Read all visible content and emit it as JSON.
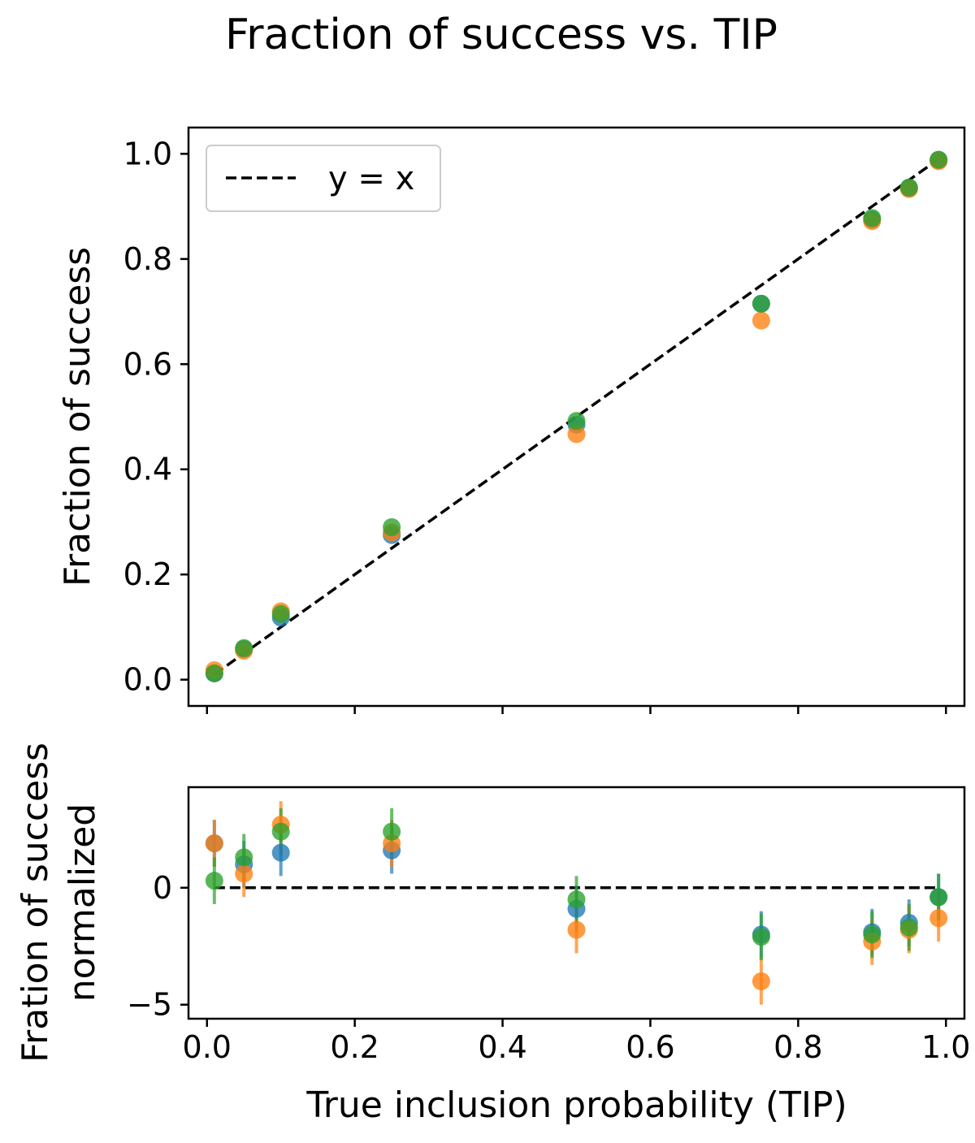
{
  "chart_data": [
    {
      "type": "scatter",
      "title": "Fraction of success vs. TIP",
      "xlabel": "",
      "ylabel": "Fraction of success",
      "xlim": [
        -0.025,
        1.025
      ],
      "ylim": [
        -0.05,
        1.05
      ],
      "xticks": [
        "",
        "",
        "",
        "",
        "",
        ""
      ],
      "yticks": [
        "0.0",
        "0.2",
        "0.4",
        "0.6",
        "0.8",
        "1.0"
      ],
      "grid": false,
      "legend": {
        "position": "top-left",
        "entries": [
          "y = x"
        ]
      },
      "reference_line": {
        "label": "y = x",
        "style": "dashed",
        "color": "#000000",
        "points": [
          [
            0.01,
            0.01
          ],
          [
            0.99,
            0.99
          ]
        ]
      },
      "x": [
        0.01,
        0.05,
        0.1,
        0.25,
        0.5,
        0.75,
        0.9,
        0.95,
        0.99
      ],
      "series": [
        {
          "color": "#1f77b4",
          "values": [
            0.012,
            0.058,
            0.118,
            0.275,
            0.485,
            0.715,
            0.875,
            0.935,
            0.988
          ]
        },
        {
          "color": "#ff7f0e",
          "values": [
            0.018,
            0.055,
            0.13,
            0.28,
            0.467,
            0.683,
            0.872,
            0.933,
            0.986
          ]
        },
        {
          "color": "#2ca02c",
          "values": [
            0.012,
            0.06,
            0.125,
            0.29,
            0.492,
            0.715,
            0.878,
            0.936,
            0.989
          ]
        }
      ]
    },
    {
      "type": "scatter",
      "title": "",
      "xlabel": "True inclusion probability (TIP)",
      "ylabel": "Fration of success normalized",
      "ylabel_lines": [
        "Fration of success",
        "normalized"
      ],
      "xlim": [
        -0.025,
        1.025
      ],
      "ylim": [
        -5.6,
        4.3
      ],
      "xticks": [
        "0.0",
        "0.2",
        "0.4",
        "0.6",
        "0.8",
        "1.0"
      ],
      "yticks": [
        "−5",
        "0"
      ],
      "grid": false,
      "reference_line": {
        "style": "dashed",
        "color": "#000000",
        "points": [
          [
            0.01,
            0
          ],
          [
            0.99,
            0
          ]
        ]
      },
      "x": [
        0.01,
        0.05,
        0.1,
        0.25,
        0.5,
        0.75,
        0.9,
        0.95,
        0.99
      ],
      "series": [
        {
          "color": "#1f77b4",
          "values": [
            1.9,
            1.0,
            1.5,
            1.6,
            -0.9,
            -2.0,
            -1.9,
            -1.5,
            -0.4
          ],
          "errors": [
            1.0,
            1.0,
            1.0,
            1.0,
            1.0,
            1.0,
            1.0,
            1.0,
            1.0
          ]
        },
        {
          "color": "#ff7f0e",
          "values": [
            1.9,
            0.6,
            2.7,
            1.9,
            -1.8,
            -4.0,
            -2.3,
            -1.8,
            -1.3
          ],
          "errors": [
            1.0,
            1.0,
            1.0,
            1.0,
            1.0,
            1.0,
            1.0,
            1.0,
            1.0
          ]
        },
        {
          "color": "#2ca02c",
          "values": [
            0.3,
            1.3,
            2.4,
            2.4,
            -0.5,
            -2.1,
            -2.0,
            -1.7,
            -0.4
          ],
          "errors": [
            1.0,
            1.0,
            1.0,
            1.0,
            1.0,
            1.0,
            1.0,
            1.0,
            1.0
          ]
        }
      ]
    }
  ]
}
